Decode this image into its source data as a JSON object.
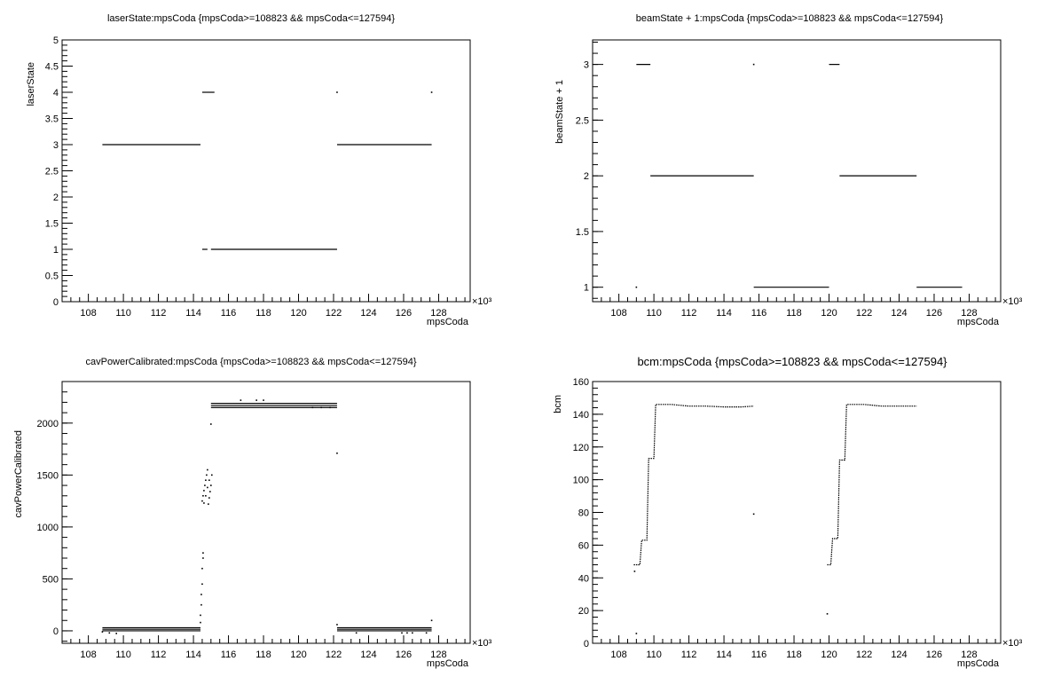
{
  "chart_data": [
    {
      "type": "scatter",
      "title": "laserState:mpsCoda {mpsCoda>=108823 && mpsCoda<=127594}",
      "xlabel": "mpsCoda",
      "ylabel": "laserState",
      "x_multiplier": "×10³",
      "xlim": [
        106.5,
        129.8
      ],
      "ylim": [
        0,
        5
      ],
      "xticks": [
        108,
        110,
        112,
        114,
        116,
        118,
        120,
        122,
        124,
        126,
        128
      ],
      "xtick_labels": [
        "108",
        "110",
        "112",
        "114",
        "116",
        "118",
        "120",
        "122",
        "124",
        "126",
        "128"
      ],
      "yticks": [
        0,
        0.5,
        1,
        1.5,
        2,
        2.5,
        3,
        3.5,
        4,
        4.5,
        5
      ],
      "ytick_labels": [
        "0",
        "0.5",
        "1",
        "1.5",
        "2",
        "2.5",
        "3",
        "3.5",
        "4",
        "4.5",
        "5"
      ],
      "segments": [
        {
          "x0": 108.8,
          "x1": 114.4,
          "y": 3
        },
        {
          "x0": 114.5,
          "x1": 115.2,
          "y": 4
        },
        {
          "x0": 114.5,
          "x1": 114.8,
          "y": 1
        },
        {
          "x0": 115.0,
          "x1": 122.2,
          "y": 1
        },
        {
          "x0": 122.2,
          "x1": 127.6,
          "y": 3
        }
      ],
      "points": [
        {
          "x": 122.2,
          "y": 4
        },
        {
          "x": 127.6,
          "y": 4
        }
      ]
    },
    {
      "type": "scatter",
      "title": "beamState + 1:mpsCoda {mpsCoda>=108823 && mpsCoda<=127594}",
      "xlabel": "mpsCoda",
      "ylabel": "beamState + 1",
      "x_multiplier": "×10³",
      "xlim": [
        106.5,
        129.8
      ],
      "ylim": [
        0.87,
        3.22
      ],
      "xticks": [
        108,
        110,
        112,
        114,
        116,
        118,
        120,
        122,
        124,
        126,
        128
      ],
      "xtick_labels": [
        "108",
        "110",
        "112",
        "114",
        "116",
        "118",
        "120",
        "122",
        "124",
        "126",
        "128"
      ],
      "yticks": [
        1,
        1.5,
        2,
        2.5,
        3
      ],
      "ytick_labels": [
        "1",
        "1.5",
        "2",
        "2.5",
        "3"
      ],
      "segments": [
        {
          "x0": 109.0,
          "x1": 109.8,
          "y": 3
        },
        {
          "x0": 109.8,
          "x1": 115.7,
          "y": 2
        },
        {
          "x0": 115.7,
          "x1": 120.0,
          "y": 1
        },
        {
          "x0": 120.0,
          "x1": 120.6,
          "y": 3
        },
        {
          "x0": 120.6,
          "x1": 125.0,
          "y": 2
        },
        {
          "x0": 125.0,
          "x1": 127.6,
          "y": 1
        }
      ],
      "points": [
        {
          "x": 115.7,
          "y": 3
        },
        {
          "x": 109.0,
          "y": 1
        }
      ]
    },
    {
      "type": "scatter",
      "title": "cavPowerCalibrated:mpsCoda {mpsCoda>=108823 && mpsCoda<=127594}",
      "xlabel": "mpsCoda",
      "ylabel": "cavPowerCalibrated",
      "x_multiplier": "×10³",
      "xlim": [
        106.5,
        129.8
      ],
      "ylim": [
        -120,
        2400
      ],
      "xticks": [
        108,
        110,
        112,
        114,
        116,
        118,
        120,
        122,
        124,
        126,
        128
      ],
      "xtick_labels": [
        "108",
        "110",
        "112",
        "114",
        "116",
        "118",
        "120",
        "122",
        "124",
        "126",
        "128"
      ],
      "yticks": [
        0,
        500,
        1000,
        1500,
        2000
      ],
      "ytick_labels": [
        "0",
        "500",
        "1000",
        "1500",
        "2000"
      ],
      "segments": [
        {
          "x0": 108.8,
          "x1": 114.4,
          "y": 0
        },
        {
          "x0": 108.8,
          "x1": 114.4,
          "y": 15
        },
        {
          "x0": 108.8,
          "x1": 114.4,
          "y": 30
        },
        {
          "x0": 115.0,
          "x1": 122.2,
          "y": 2150
        },
        {
          "x0": 115.0,
          "x1": 122.2,
          "y": 2170
        },
        {
          "x0": 115.0,
          "x1": 122.2,
          "y": 2190
        },
        {
          "x0": 122.2,
          "x1": 127.6,
          "y": 0
        },
        {
          "x0": 122.2,
          "x1": 127.6,
          "y": 15
        },
        {
          "x0": 122.2,
          "x1": 127.6,
          "y": 30
        }
      ],
      "points": [
        {
          "x": 108.8,
          "y": -10
        },
        {
          "x": 109.2,
          "y": -20
        },
        {
          "x": 109.6,
          "y": -25
        },
        {
          "x": 114.4,
          "y": 80
        },
        {
          "x": 114.4,
          "y": 150
        },
        {
          "x": 114.45,
          "y": 250
        },
        {
          "x": 114.45,
          "y": 350
        },
        {
          "x": 114.5,
          "y": 450
        },
        {
          "x": 114.5,
          "y": 600
        },
        {
          "x": 114.55,
          "y": 700
        },
        {
          "x": 114.55,
          "y": 750
        },
        {
          "x": 114.5,
          "y": 1250
        },
        {
          "x": 114.55,
          "y": 1300
        },
        {
          "x": 114.6,
          "y": 1350
        },
        {
          "x": 114.65,
          "y": 1400
        },
        {
          "x": 114.7,
          "y": 1450
        },
        {
          "x": 114.75,
          "y": 1500
        },
        {
          "x": 114.8,
          "y": 1550
        },
        {
          "x": 114.85,
          "y": 1220
        },
        {
          "x": 114.9,
          "y": 1280
        },
        {
          "x": 114.95,
          "y": 1340
        },
        {
          "x": 115.0,
          "y": 1400
        },
        {
          "x": 115.05,
          "y": 1500
        },
        {
          "x": 114.6,
          "y": 1230
        },
        {
          "x": 114.7,
          "y": 1300
        },
        {
          "x": 114.8,
          "y": 1380
        },
        {
          "x": 114.9,
          "y": 1450
        },
        {
          "x": 115.0,
          "y": 1990
        },
        {
          "x": 116.7,
          "y": 2220
        },
        {
          "x": 117.6,
          "y": 2220
        },
        {
          "x": 118.0,
          "y": 2220
        },
        {
          "x": 120.8,
          "y": 2150
        },
        {
          "x": 121.3,
          "y": 2150
        },
        {
          "x": 121.8,
          "y": 2150
        },
        {
          "x": 122.2,
          "y": 1710
        },
        {
          "x": 123.3,
          "y": -20
        },
        {
          "x": 125.9,
          "y": -20
        },
        {
          "x": 126.2,
          "y": -20
        },
        {
          "x": 126.5,
          "y": -20
        },
        {
          "x": 127.3,
          "y": -20
        },
        {
          "x": 127.6,
          "y": 100
        },
        {
          "x": 122.2,
          "y": 60
        }
      ]
    },
    {
      "type": "scatter",
      "title": "bcm:mpsCoda {mpsCoda>=108823 && mpsCoda<=127594}",
      "xlabel": "mpsCoda",
      "ylabel": "bcm",
      "x_multiplier": "×10³",
      "xlim": [
        106.5,
        129.8
      ],
      "ylim": [
        0,
        160
      ],
      "xticks": [
        108,
        110,
        112,
        114,
        116,
        118,
        120,
        122,
        124,
        126,
        128
      ],
      "xtick_labels": [
        "108",
        "110",
        "112",
        "114",
        "116",
        "118",
        "120",
        "122",
        "124",
        "126",
        "128"
      ],
      "yticks": [
        0,
        20,
        40,
        60,
        80,
        100,
        120,
        140,
        160
      ],
      "ytick_labels": [
        "0",
        "20",
        "40",
        "60",
        "80",
        "100",
        "120",
        "140",
        "160"
      ],
      "curves": [
        [
          [
            108.85,
            48
          ],
          [
            109.2,
            48
          ],
          [
            109.3,
            63
          ],
          [
            109.6,
            63
          ],
          [
            109.7,
            113
          ],
          [
            110.0,
            113
          ],
          [
            110.1,
            146
          ],
          [
            111,
            146
          ],
          [
            112,
            145
          ],
          [
            113,
            145
          ],
          [
            114,
            144.5
          ],
          [
            115,
            144.5
          ],
          [
            115.7,
            145
          ]
        ],
        [
          [
            119.9,
            48
          ],
          [
            120.1,
            48
          ],
          [
            120.2,
            64
          ],
          [
            120.5,
            64
          ],
          [
            120.6,
            112
          ],
          [
            120.9,
            112
          ],
          [
            121.0,
            146
          ],
          [
            122,
            146
          ],
          [
            123,
            145
          ],
          [
            124,
            145
          ],
          [
            125,
            145
          ]
        ]
      ],
      "points": [
        {
          "x": 108.9,
          "y": 44
        },
        {
          "x": 115.7,
          "y": 79
        },
        {
          "x": 119.9,
          "y": 18
        },
        {
          "x": 109.0,
          "y": 6
        }
      ]
    }
  ]
}
